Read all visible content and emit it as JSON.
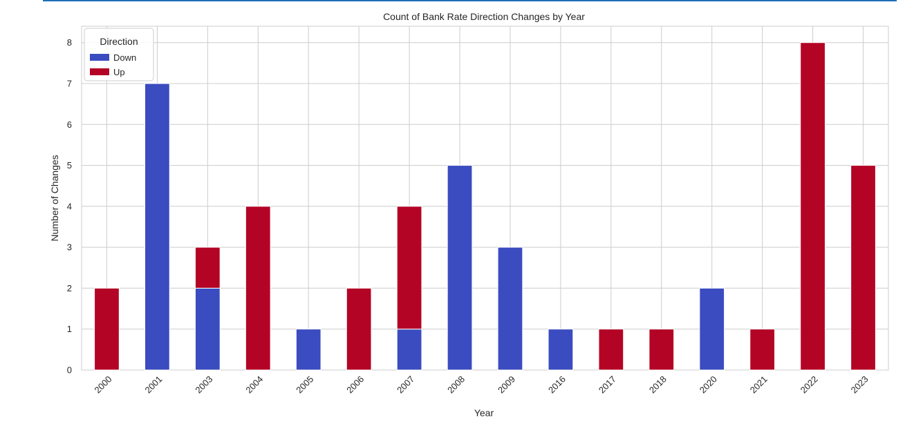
{
  "chart_data": {
    "type": "bar",
    "stacked": true,
    "title": "Count of Bank Rate Direction Changes by Year",
    "xlabel": "Year",
    "ylabel": "Number of Changes",
    "ylim": [
      0,
      8.4
    ],
    "yticks": [
      0,
      1,
      2,
      3,
      4,
      5,
      6,
      7,
      8
    ],
    "grid": true,
    "legend": {
      "title": "Direction",
      "placement": "top-left"
    },
    "categories": [
      "2000",
      "2001",
      "2003",
      "2004",
      "2005",
      "2006",
      "2007",
      "2008",
      "2009",
      "2016",
      "2017",
      "2018",
      "2020",
      "2021",
      "2022",
      "2023"
    ],
    "series": [
      {
        "name": "Down",
        "color": "#3b4cc0",
        "values": [
          0,
          7,
          2,
          0,
          1,
          0,
          1,
          5,
          3,
          1,
          0,
          0,
          2,
          0,
          0,
          0
        ]
      },
      {
        "name": "Up",
        "color": "#b40426",
        "values": [
          2,
          0,
          1,
          4,
          0,
          2,
          3,
          0,
          0,
          0,
          1,
          1,
          0,
          1,
          8,
          5
        ]
      }
    ]
  }
}
